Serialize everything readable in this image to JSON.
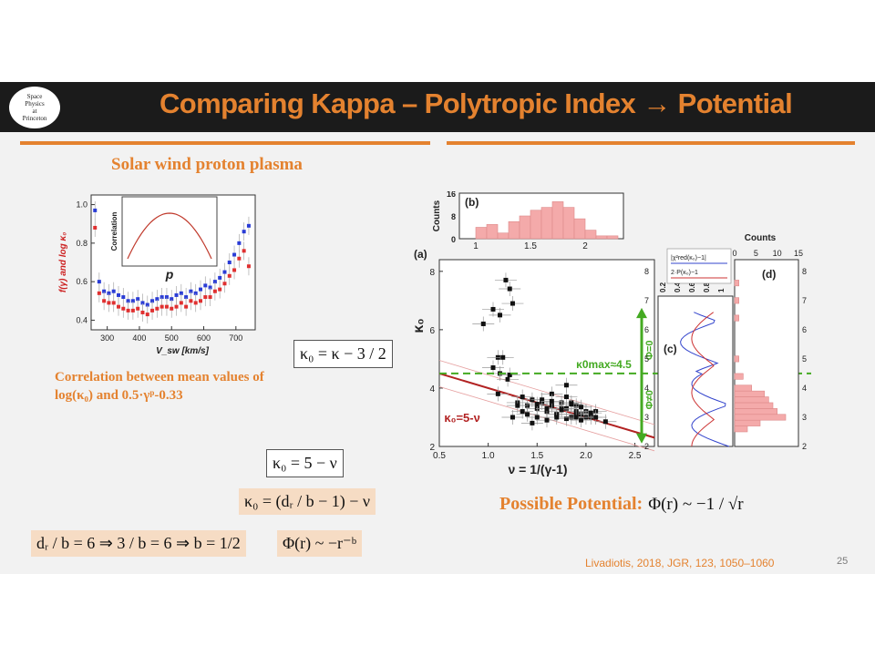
{
  "slide": {
    "title": "Comparing Kappa – Polytropic Index → Potential",
    "logo_text": [
      "Space",
      "Physics",
      "at",
      "Princeton"
    ],
    "subtitle": "Solar wind proton plasma",
    "correlation_text": "Correlation between mean values of log(κ₀) and 0.5·γᵖ-0.33",
    "equations": {
      "kappa0_kappa": "κ₀ = κ − 3 / 2",
      "kappa0_nu": "κ₀ = 5 − ν",
      "kappa0_dr": "κ₀ = (dᵣ / b − 1) − ν",
      "dr_b_chain": "dᵣ / b = 6 ⇒ 3 / b = 6 ⇒ b = 1/2",
      "phi_power": "Φ(r) ~ −r⁻ᵇ"
    },
    "possible_potential_label": "Possible Potential:",
    "possible_potential_eq": "Φ(r) ~ −1 / √r",
    "citation": "Livadiotis, 2018, JGR, 123, 1050–1060",
    "page_number": "25"
  },
  "colors": {
    "accent": "#e4822f",
    "titlebar": "#1b1b1b",
    "series_red": "#e03030",
    "series_blue": "#2a3cd6",
    "fit_line": "#b22222",
    "green": "#44aa22",
    "histogram": "#f4aaaa"
  },
  "chart_data": [
    {
      "type": "scatter",
      "xlabel": "V_sw [km/s]",
      "ylabel": "f(γ) and log κ₀",
      "xlim": [
        250,
        760
      ],
      "ylim": [
        0.35,
        1.05
      ],
      "xticks": [
        "300",
        "400",
        "500",
        "600",
        "700"
      ],
      "yticks": [
        "0.4",
        "0.6",
        "0.8",
        "1.0"
      ],
      "series": [
        {
          "color": "#2a3cd6",
          "x": [
            262,
            275,
            290,
            305,
            320,
            335,
            350,
            365,
            380,
            395,
            410,
            425,
            440,
            455,
            470,
            485,
            500,
            515,
            530,
            545,
            560,
            575,
            590,
            605,
            620,
            635,
            650,
            665,
            680,
            695,
            710,
            725,
            740
          ],
          "y": [
            0.97,
            0.6,
            0.55,
            0.54,
            0.55,
            0.53,
            0.52,
            0.5,
            0.5,
            0.51,
            0.49,
            0.48,
            0.5,
            0.51,
            0.52,
            0.52,
            0.51,
            0.53,
            0.54,
            0.52,
            0.55,
            0.54,
            0.56,
            0.58,
            0.57,
            0.6,
            0.62,
            0.65,
            0.7,
            0.74,
            0.8,
            0.86,
            0.89
          ]
        },
        {
          "color": "#e03030",
          "x": [
            262,
            275,
            290,
            305,
            320,
            335,
            350,
            365,
            380,
            395,
            410,
            425,
            440,
            455,
            470,
            485,
            500,
            515,
            530,
            545,
            560,
            575,
            590,
            605,
            620,
            635,
            650,
            665,
            680,
            695,
            710,
            725,
            740
          ],
          "y": [
            0.88,
            0.54,
            0.5,
            0.49,
            0.49,
            0.47,
            0.46,
            0.45,
            0.45,
            0.46,
            0.44,
            0.43,
            0.45,
            0.46,
            0.47,
            0.47,
            0.46,
            0.47,
            0.49,
            0.47,
            0.5,
            0.49,
            0.5,
            0.52,
            0.52,
            0.55,
            0.56,
            0.59,
            0.63,
            0.66,
            0.72,
            0.76,
            0.68
          ]
        }
      ],
      "inset": {
        "type": "line",
        "ylabel": "Correlation",
        "xlabel": "p",
        "note": "single-peaked correlation curve"
      }
    },
    {
      "type": "scatter",
      "panel": "(a)",
      "xlabel": "ν = 1/(γ-1)",
      "ylabel": "κ₀",
      "xlim": [
        0.5,
        2.7
      ],
      "ylim": [
        2,
        8.4
      ],
      "xticks": [
        "0.5",
        "1.0",
        "1.5",
        "2.0",
        "2.5"
      ],
      "yticks": [
        "2",
        "4",
        "6",
        "8"
      ],
      "fit_label": "κ₀=5-ν",
      "kappa_max_label": "κ0max≈4.5",
      "phi0_label": "Φ=0",
      "phi_nonzero_label": "Φ≠0",
      "x": [
        0.95,
        1.05,
        1.12,
        1.18,
        1.22,
        1.25,
        1.1,
        1.15,
        1.05,
        1.1,
        1.2,
        1.3,
        1.35,
        1.4,
        1.45,
        1.5,
        1.55,
        1.6,
        1.65,
        1.7,
        1.75,
        1.8,
        1.85,
        1.9,
        1.95,
        2.0,
        2.05,
        2.1,
        1.5,
        1.6,
        1.7,
        1.8,
        1.9,
        2.0,
        1.55,
        1.65,
        1.75,
        1.85,
        1.95,
        1.4,
        1.3,
        1.25,
        1.45,
        1.6,
        1.7,
        1.8,
        1.9,
        2.1,
        2.2,
        1.35,
        1.5,
        1.65,
        1.75,
        1.85,
        1.95,
        2.05,
        1.12,
        1.22,
        1.8,
        1.9
      ],
      "y": [
        6.2,
        6.7,
        6.5,
        7.7,
        7.4,
        6.9,
        5.05,
        5.05,
        4.7,
        3.8,
        4.3,
        3.5,
        3.7,
        3.4,
        3.6,
        3.3,
        3.5,
        3.2,
        3.4,
        3.1,
        3.5,
        3.3,
        3.0,
        3.4,
        3.1,
        3.2,
        3.0,
        3.2,
        3.0,
        2.9,
        3.1,
        2.95,
        3.2,
        3.0,
        3.6,
        3.8,
        3.3,
        3.5,
        2.9,
        3.1,
        3.4,
        3.0,
        2.8,
        3.3,
        3.0,
        3.7,
        3.1,
        3.0,
        2.85,
        3.2,
        3.45,
        3.55,
        3.25,
        3.45,
        3.35,
        3.15,
        4.5,
        4.45,
        4.1,
        3.0
      ]
    },
    {
      "type": "bar",
      "panel": "(b)",
      "ylabel": "Counts",
      "xticks": [
        "1",
        "1.5",
        "2"
      ],
      "yticks": [
        "0",
        "8",
        "16"
      ],
      "x": [
        1.0,
        1.1,
        1.2,
        1.3,
        1.4,
        1.5,
        1.6,
        1.7,
        1.8,
        1.9,
        2.0,
        2.1,
        2.2
      ],
      "values": [
        4,
        5,
        2,
        6,
        8,
        10,
        11,
        13,
        11,
        7,
        3,
        1,
        1
      ]
    },
    {
      "type": "line",
      "panel": "(c)",
      "xticks": [
        "0.2",
        "0.4",
        "0.6",
        "0.8",
        "1"
      ],
      "legend": [
        "|χ²red(κ₀)−1|",
        "2·P(κ₀)−1"
      ]
    },
    {
      "type": "bar",
      "panel": "(d)",
      "xlabel": "Counts",
      "xticks": [
        "0",
        "5",
        "10",
        "15"
      ],
      "yticks": [
        "2",
        "3",
        "4",
        "5",
        "6",
        "7",
        "8"
      ],
      "y": [
        2.6,
        2.8,
        3.0,
        3.2,
        3.4,
        3.6,
        3.8,
        4.0,
        4.4,
        5.0,
        6.4,
        7.0,
        7.6
      ],
      "values": [
        3,
        6,
        12,
        10,
        9,
        8,
        7,
        4,
        2,
        1,
        1,
        1,
        1
      ]
    }
  ]
}
